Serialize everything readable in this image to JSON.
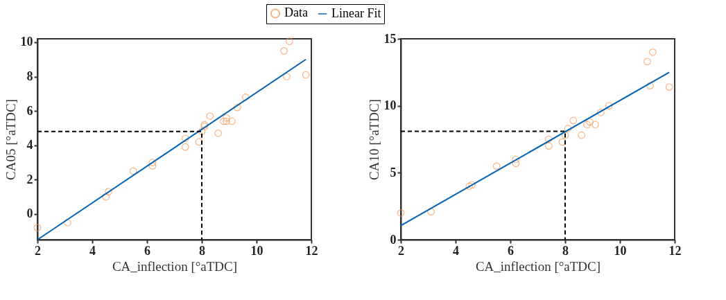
{
  "chart_data": [
    {
      "type": "scatter",
      "xlabel": "CA_inflection [°aTDC]",
      "ylabel": "CA05 [°aTDC]",
      "xlim": [
        2,
        12
      ],
      "ylim": [
        -1.5,
        10.2
      ],
      "xticks": [
        2,
        4,
        6,
        8,
        10,
        12
      ],
      "yticks": [
        0,
        2,
        4,
        6,
        8,
        10
      ],
      "grid": false,
      "legend": "top",
      "series": [
        {
          "name": "Data",
          "marker": "circle",
          "color": "#f5954f",
          "x": [
            2.0,
            3.1,
            4.5,
            4.6,
            5.5,
            6.2,
            6.2,
            7.4,
            7.4,
            7.9,
            8.0,
            8.1,
            8.1,
            8.3,
            8.6,
            8.8,
            8.9,
            8.9,
            9.1,
            9.3,
            9.6,
            11.0,
            11.1,
            11.2,
            11.8
          ],
          "values": [
            -0.8,
            -0.5,
            1.0,
            1.3,
            2.5,
            3.0,
            2.8,
            4.4,
            3.9,
            4.2,
            4.8,
            5.2,
            5.1,
            5.7,
            4.7,
            5.4,
            5.6,
            5.4,
            5.4,
            6.2,
            6.8,
            9.5,
            8.0,
            10.05,
            8.1
          ]
        },
        {
          "name": "Linear Fit",
          "type": "line",
          "color": "#0062b4",
          "line_style": "solid",
          "x": [
            2,
            11.8
          ],
          "values": [
            -1.5,
            9.0
          ]
        },
        {
          "type": "line",
          "color": "#000000",
          "line_style": "dashed",
          "x": [
            2,
            8,
            8
          ],
          "values": [
            4.8,
            4.8,
            -1.5
          ]
        }
      ]
    },
    {
      "type": "scatter",
      "ylabel": "CA10 [°aTDC]",
      "xlabel": "CA_inflection [°aTDC]",
      "xlim": [
        2,
        12
      ],
      "ylim": [
        0,
        15
      ],
      "xticks": [
        2,
        4,
        6,
        8,
        10,
        12
      ],
      "yticks": [
        0,
        5,
        10,
        15
      ],
      "grid": false,
      "series": [
        {
          "marker": "circle",
          "color": "#f5954f",
          "x": [
            2.0,
            3.1,
            4.5,
            4.6,
            5.5,
            6.2,
            6.2,
            7.4,
            7.4,
            7.9,
            8.0,
            8.1,
            8.3,
            8.6,
            8.8,
            8.9,
            9.1,
            9.3,
            9.6,
            11.0,
            11.1,
            11.2,
            11.8
          ],
          "values": [
            2.0,
            2.1,
            4.0,
            4.1,
            5.5,
            6.0,
            5.7,
            7.5,
            7.0,
            7.3,
            7.8,
            8.3,
            8.9,
            7.8,
            8.6,
            8.8,
            8.6,
            9.5,
            10.0,
            13.3,
            11.5,
            14.0,
            11.4
          ]
        },
        {
          "type": "line",
          "color": "#0062b4",
          "line_style": "solid",
          "x": [
            2,
            11.8
          ],
          "values": [
            1.05,
            12.5
          ]
        },
        {
          "type": "line",
          "color": "#000000",
          "line_style": "dashed",
          "x": [
            2,
            8,
            8
          ],
          "values": [
            8.1,
            8.1,
            0
          ]
        }
      ]
    }
  ]
}
